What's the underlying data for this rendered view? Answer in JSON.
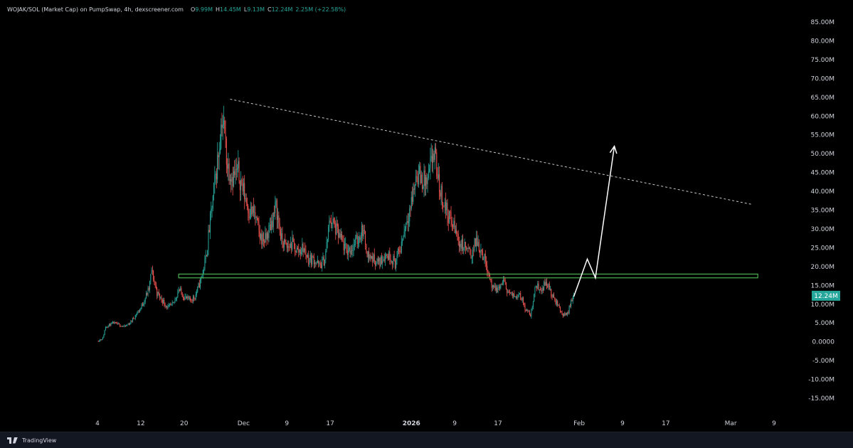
{
  "header": {
    "symbol": "WOJAK/SOL (Market Cap) on PumpSwap, 4h, dexscreener.com",
    "o_label": "O",
    "o_value": "9.99M",
    "h_label": "H",
    "h_value": "14.45M",
    "l_label": "L",
    "l_value": "9.13M",
    "c_label": "C",
    "c_value": "12.24M",
    "change": "2.25M (+22.58%)"
  },
  "footer": {
    "brand": "TradingView"
  },
  "colors": {
    "up": "#26a69a",
    "down": "#ef5350",
    "support": "#4caf50",
    "arrow": "#ffffff",
    "price_tag": "#26a69a"
  },
  "chart_data": {
    "type": "candlestick",
    "title": "",
    "ylim": [
      -17,
      88
    ],
    "y_ticks": [
      "85.00M",
      "80.00M",
      "75.00M",
      "70.00M",
      "65.00M",
      "60.00M",
      "55.00M",
      "50.00M",
      "45.00M",
      "40.00M",
      "35.00M",
      "30.00M",
      "25.00M",
      "20.00M",
      "15.00M",
      "10.00M",
      "5.00M",
      "0.0000",
      "-5.00M",
      "-10.00M",
      "-15.00M"
    ],
    "x_ticks": [
      {
        "label": "4",
        "day": 0
      },
      {
        "label": "12",
        "day": 8
      },
      {
        "label": "20",
        "day": 16
      },
      {
        "label": "Dec",
        "day": 27
      },
      {
        "label": "9",
        "day": 35
      },
      {
        "label": "17",
        "day": 43
      },
      {
        "label": "2026",
        "day": 58
      },
      {
        "label": "9",
        "day": 66
      },
      {
        "label": "17",
        "day": 74
      },
      {
        "label": "Feb",
        "day": 89
      },
      {
        "label": "9",
        "day": 97
      },
      {
        "label": "17",
        "day": 105
      },
      {
        "label": "Mar",
        "day": 117
      },
      {
        "label": "9",
        "day": 125
      }
    ],
    "last_price": 12.24,
    "last_price_label": "12.24M",
    "price_path_millions": [
      [
        0,
        0.2
      ],
      [
        1,
        1
      ],
      [
        1.5,
        4
      ],
      [
        3,
        5
      ],
      [
        5,
        4
      ],
      [
        6,
        5
      ],
      [
        8,
        9
      ],
      [
        9.5,
        14
      ],
      [
        10,
        19
      ],
      [
        11,
        13
      ],
      [
        12,
        11
      ],
      [
        13,
        9
      ],
      [
        14,
        10
      ],
      [
        15,
        14
      ],
      [
        16,
        12
      ],
      [
        17,
        11
      ],
      [
        18,
        12
      ],
      [
        19,
        16
      ],
      [
        20,
        22
      ],
      [
        21,
        34
      ],
      [
        22,
        46
      ],
      [
        22.5,
        52
      ],
      [
        23,
        60
      ],
      [
        23.5,
        55
      ],
      [
        24,
        47
      ],
      [
        25,
        44
      ],
      [
        26,
        45
      ],
      [
        27,
        40
      ],
      [
        28,
        35
      ],
      [
        29,
        34
      ],
      [
        30,
        28
      ],
      [
        31,
        27
      ],
      [
        32,
        31
      ],
      [
        33,
        36
      ],
      [
        34,
        27
      ],
      [
        35,
        25
      ],
      [
        36,
        26
      ],
      [
        37,
        24
      ],
      [
        38,
        25
      ],
      [
        39,
        22
      ],
      [
        40,
        22
      ],
      [
        41,
        20
      ],
      [
        42,
        22
      ],
      [
        43,
        33
      ],
      [
        44,
        30
      ],
      [
        45,
        27
      ],
      [
        46,
        24
      ],
      [
        47,
        25
      ],
      [
        48,
        27
      ],
      [
        49,
        30
      ],
      [
        50,
        23
      ],
      [
        51,
        22
      ],
      [
        52,
        21
      ],
      [
        53,
        23
      ],
      [
        54,
        23
      ],
      [
        55,
        21
      ],
      [
        56,
        25
      ],
      [
        57,
        32
      ],
      [
        58,
        37
      ],
      [
        59,
        45
      ],
      [
        60,
        43
      ],
      [
        61,
        42
      ],
      [
        62,
        50
      ],
      [
        62.5,
        48
      ],
      [
        63,
        42
      ],
      [
        64,
        37
      ],
      [
        65,
        33
      ],
      [
        66,
        30
      ],
      [
        67,
        26
      ],
      [
        68,
        25
      ],
      [
        69,
        23
      ],
      [
        70,
        27
      ],
      [
        71,
        24
      ],
      [
        72,
        20
      ],
      [
        73,
        14
      ],
      [
        74,
        14
      ],
      [
        75,
        16
      ],
      [
        76,
        13
      ],
      [
        77,
        12
      ],
      [
        78,
        13
      ],
      [
        79,
        9
      ],
      [
        80,
        7
      ],
      [
        81,
        15
      ],
      [
        82,
        14
      ],
      [
        83,
        16
      ],
      [
        84,
        12
      ],
      [
        85,
        10
      ],
      [
        86,
        7
      ],
      [
        87,
        8
      ],
      [
        87.5,
        11
      ],
      [
        88,
        12.24
      ]
    ],
    "resistance_line": [
      [
        24.5,
        64.5
      ],
      [
        121,
        36.5
      ]
    ],
    "support_band": [
      [
        15,
        17
      ],
      [
        122,
        18
      ]
    ],
    "projection_path": [
      [
        88,
        12
      ],
      [
        90.5,
        22
      ],
      [
        92,
        17
      ],
      [
        95.5,
        52
      ]
    ]
  }
}
